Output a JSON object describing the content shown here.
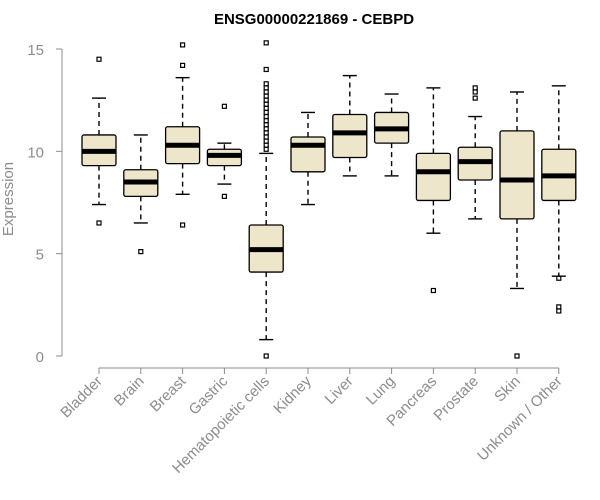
{
  "chart_data": {
    "type": "boxplot",
    "title": "ENSG00000221869 - CEBPD",
    "xlabel": "",
    "ylabel": "Expression",
    "ylim": [
      0,
      15
    ],
    "yticks": [
      0,
      5,
      10,
      15
    ],
    "grid": false,
    "colors": {
      "box_fill": "#ede6cb",
      "axis": "#8c8c8c",
      "stroke": "#000000"
    },
    "categories": [
      "Bladder",
      "Brain",
      "Breast",
      "Gastric",
      "Hematopoietic cells",
      "Kidney",
      "Liver",
      "Lung",
      "Pancreas",
      "Prostate",
      "Skin",
      "Unknown / Other"
    ],
    "boxes": [
      {
        "min": 7.4,
        "q1": 9.3,
        "median": 10.0,
        "q3": 10.8,
        "max": 12.6,
        "outliers": [
          14.5,
          6.5
        ]
      },
      {
        "min": 6.5,
        "q1": 7.8,
        "median": 8.5,
        "q3": 9.1,
        "max": 10.8,
        "outliers": [
          5.1
        ]
      },
      {
        "min": 7.9,
        "q1": 9.4,
        "median": 10.3,
        "q3": 11.2,
        "max": 13.6,
        "outliers": [
          15.2,
          14.2,
          6.4
        ]
      },
      {
        "min": 8.4,
        "q1": 9.3,
        "median": 9.8,
        "q3": 10.1,
        "max": 10.4,
        "outliers": [
          12.2,
          7.8
        ]
      },
      {
        "min": 0.8,
        "q1": 4.1,
        "median": 5.2,
        "q3": 6.4,
        "max": 9.9,
        "outliers": [
          15.3,
          14.0,
          13.3,
          13.1,
          12.9,
          12.7,
          12.5,
          12.3,
          12.1,
          11.9,
          11.7,
          11.5,
          11.3,
          11.1,
          10.9,
          10.7,
          10.5,
          10.3,
          10.1,
          0.0
        ]
      },
      {
        "min": 7.4,
        "q1": 9.0,
        "median": 10.3,
        "q3": 10.7,
        "max": 11.9,
        "outliers": []
      },
      {
        "min": 8.8,
        "q1": 9.7,
        "median": 10.9,
        "q3": 11.8,
        "max": 13.7,
        "outliers": []
      },
      {
        "min": 8.8,
        "q1": 10.4,
        "median": 11.1,
        "q3": 11.9,
        "max": 12.8,
        "outliers": []
      },
      {
        "min": 6.0,
        "q1": 7.6,
        "median": 9.0,
        "q3": 9.9,
        "max": 13.1,
        "outliers": [
          3.2
        ]
      },
      {
        "min": 6.7,
        "q1": 8.6,
        "median": 9.5,
        "q3": 10.2,
        "max": 11.7,
        "outliers": [
          13.1,
          12.9,
          12.6
        ]
      },
      {
        "min": 3.3,
        "q1": 6.7,
        "median": 8.6,
        "q3": 11.0,
        "max": 12.9,
        "outliers": [
          0.0
        ]
      },
      {
        "min": 3.9,
        "q1": 7.6,
        "median": 8.8,
        "q3": 10.1,
        "max": 13.2,
        "outliers": [
          3.8,
          2.4,
          2.2
        ]
      }
    ]
  }
}
